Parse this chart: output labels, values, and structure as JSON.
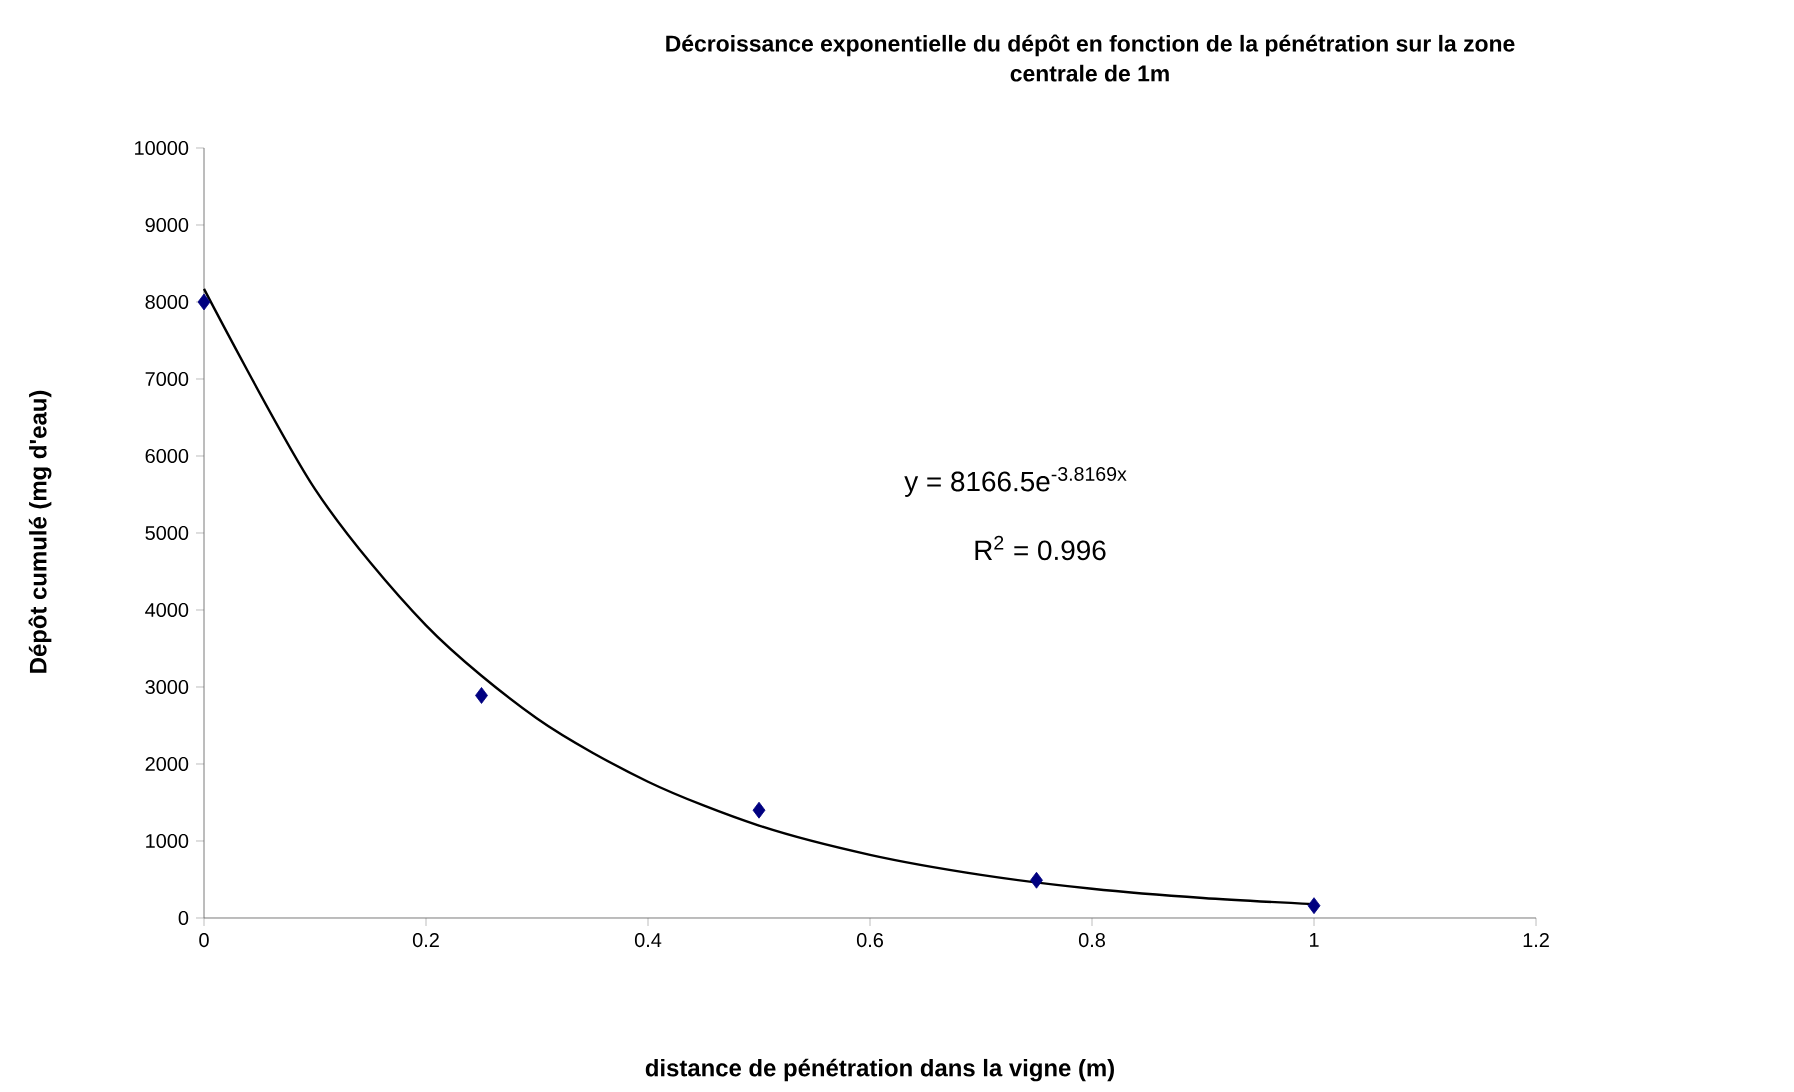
{
  "chart_data": {
    "type": "scatter",
    "title": "Décroissance exponentielle du dépôt en fonction de la pénétration sur la zone centrale de 1m",
    "xlabel": "distance de pénétration dans la vigne (m)",
    "ylabel": "Dépôt cumulé (mg d'eau)",
    "annotations": [
      "y = 8166.5e$^{-3.8169x}$",
      "R$^{2}$ = 0.996"
    ],
    "series": [
      {
        "color": "#000080",
        "marker": "diamond",
        "x": [
          0,
          0.25,
          0.5,
          0.75,
          1
        ],
        "values": [
          8000,
          2890,
          1400,
          490,
          160
        ]
      },
      {
        "type": "line",
        "color": "#000000",
        "marker": "none",
        "x": [
          0,
          0.1,
          0.2,
          0.3,
          0.4,
          0.5,
          0.6,
          0.7,
          0.8,
          0.9,
          1.0
        ],
        "values": [
          8170,
          5570,
          3800,
          2590,
          1770,
          1200,
          820,
          560,
          380,
          260,
          180
        ]
      }
    ],
    "xlim": [
      0,
      1.2
    ],
    "xticks": [
      0,
      0.2,
      0.4,
      0.6,
      0.8,
      1,
      1.2
    ],
    "ylim": [
      0,
      10000
    ],
    "yticks": [
      0,
      1000,
      2000,
      3000,
      4000,
      5000,
      6000,
      7000,
      8000,
      9000,
      10000
    ],
    "grid": false
  }
}
